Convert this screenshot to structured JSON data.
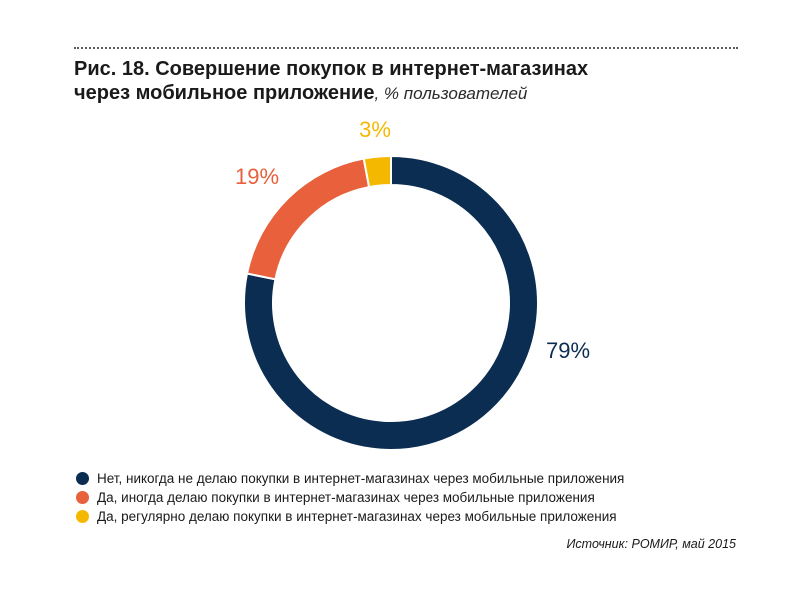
{
  "header": {
    "title_line1": "Рис. 18. Совершение покупок в интернет-магазинах",
    "title_line2": "через мобильное приложение",
    "unit": ", % пользователей"
  },
  "chart_data": {
    "type": "pie",
    "donut": true,
    "title": "Рис. 18. Совершение покупок в интернет-магазинах через мобильное приложение, % пользователей",
    "series": [
      {
        "name": "Нет, никогда не делаю покупки в интернет-магазинах через мобильные приложения",
        "value": 79,
        "label": "79%",
        "color": "#0b2d52"
      },
      {
        "name": "Да, иногда делаю покупки в интернет-магазинах через мобильные приложения",
        "value": 19,
        "label": "19%",
        "color": "#e8603c"
      },
      {
        "name": "Да, регулярно делаю покупки в интернет-магазинах через мобильные приложения",
        "value": 3,
        "label": "3%",
        "color": "#f5b800"
      }
    ],
    "legend_position": "bottom-left"
  },
  "legend": [
    {
      "label": "Нет, никогда не делаю покупки в интернет-магазинах через мобильные приложения",
      "color": "#0b2d52"
    },
    {
      "label": "Да, иногда делаю покупки в интернет-магазинах через мобильные приложения",
      "color": "#e8603c"
    },
    {
      "label": "Да, регулярно делаю покупки в интернет-магазинах через мобильные приложения",
      "color": "#f5b800"
    }
  ],
  "source": "Источник: РОМИР, май 2015"
}
